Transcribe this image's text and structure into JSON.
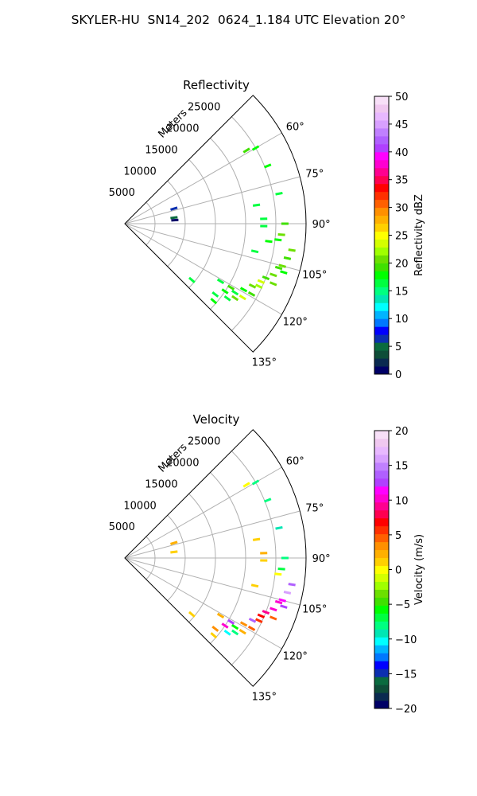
{
  "figure": {
    "title": "SKYLER-HU  SN14_202  0624_1.184 UTC Elevation 20°"
  },
  "chart_data": [
    {
      "type": "heatmap",
      "projection": "polar-sector",
      "title": "Reflectivity",
      "radial_axis_label": "Meters",
      "radial_ticks": [
        5000,
        10000,
        15000,
        20000,
        25000
      ],
      "radial_tick_labels": [
        "5000",
        "10000",
        "15000",
        "20000",
        "25000"
      ],
      "radial_range": [
        0,
        30000
      ],
      "azimuth_range_deg": [
        45,
        135
      ],
      "azimuth_ticks_deg": [
        60,
        75,
        90,
        105,
        120,
        135
      ],
      "azimuth_tick_labels": [
        "60°",
        "75°",
        "90°",
        "105°",
        "120°",
        "135°"
      ],
      "grid": true,
      "colorbar": {
        "label": "Reflectivity dBZ",
        "range": [
          0,
          50
        ],
        "ticks": [
          0,
          5,
          10,
          15,
          20,
          25,
          30,
          35,
          40,
          45,
          50
        ],
        "tick_labels": [
          "0",
          "5",
          "10",
          "15",
          "20",
          "25",
          "30",
          "35",
          "40",
          "45",
          "50"
        ],
        "colors": [
          "#000066",
          "#0a2a50",
          "#0e4d38",
          "#0a6b3f",
          "#0b2fb0",
          "#0000ff",
          "#0078ff",
          "#00b4ff",
          "#00ffff",
          "#00e6b4",
          "#00ff80",
          "#00ff40",
          "#00ff00",
          "#40e000",
          "#6ce000",
          "#a0ff00",
          "#d4ff00",
          "#ffff00",
          "#ffd000",
          "#ffb000",
          "#ff9000",
          "#ff6000",
          "#ff3000",
          "#ff0000",
          "#ff0050",
          "#ff0090",
          "#ff00d0",
          "#ff00ff",
          "#b040ff",
          "#b060ff",
          "#c080ff",
          "#d8a0ff",
          "#e8b8ff",
          "#f0c8f0",
          "#f8e0f8"
        ]
      },
      "cells": [
        {
          "r": 25000,
          "az": 60,
          "v": 18
        },
        {
          "r": 23500,
          "az": 59,
          "v": 19
        },
        {
          "r": 25500,
          "az": 68,
          "v": 18
        },
        {
          "r": 26000,
          "az": 79,
          "v": 17
        },
        {
          "r": 22000,
          "az": 82,
          "v": 16
        },
        {
          "r": 23000,
          "az": 88,
          "v": 17
        },
        {
          "r": 23000,
          "az": 91,
          "v": 16
        },
        {
          "r": 26500,
          "az": 90,
          "v": 19
        },
        {
          "r": 26000,
          "az": 94,
          "v": 20
        },
        {
          "r": 25500,
          "az": 96,
          "v": 18
        },
        {
          "r": 24000,
          "az": 97,
          "v": 18
        },
        {
          "r": 22000,
          "az": 102,
          "v": 16
        },
        {
          "r": 28000,
          "az": 99,
          "v": 20
        },
        {
          "r": 27500,
          "az": 102,
          "v": 19
        },
        {
          "r": 27000,
          "az": 105,
          "v": 21
        },
        {
          "r": 26500,
          "az": 106,
          "v": 19
        },
        {
          "r": 27500,
          "az": 107,
          "v": 18
        },
        {
          "r": 26000,
          "az": 109,
          "v": 20
        },
        {
          "r": 25000,
          "az": 111,
          "v": 19
        },
        {
          "r": 26500,
          "az": 112,
          "v": 20
        },
        {
          "r": 24500,
          "az": 115,
          "v": 22
        },
        {
          "r": 23500,
          "az": 116,
          "v": 20
        },
        {
          "r": 24000,
          "az": 119,
          "v": 19
        },
        {
          "r": 22500,
          "az": 119,
          "v": 18
        },
        {
          "r": 21500,
          "az": 122,
          "v": 17
        },
        {
          "r": 23000,
          "az": 122,
          "v": 23
        },
        {
          "r": 22000,
          "az": 124,
          "v": 20
        },
        {
          "r": 20500,
          "az": 121,
          "v": 19
        },
        {
          "r": 20000,
          "az": 124,
          "v": 18
        },
        {
          "r": 21000,
          "az": 126,
          "v": 17
        },
        {
          "r": 19000,
          "az": 128,
          "v": 16
        },
        {
          "r": 19500,
          "az": 131,
          "v": 18
        },
        {
          "r": 14500,
          "az": 130,
          "v": 17
        },
        {
          "r": 18500,
          "az": 121,
          "v": 16
        },
        {
          "r": 24500,
          "az": 113,
          "v": 24
        },
        {
          "r": 8500,
          "az": 73,
          "v": 6
        },
        {
          "r": 8200,
          "az": 83,
          "v": 5
        },
        {
          "r": 8300,
          "az": 86,
          "v": 0
        }
      ]
    },
    {
      "type": "heatmap",
      "projection": "polar-sector",
      "title": "Velocity",
      "radial_axis_label": "Meters",
      "radial_ticks": [
        5000,
        10000,
        15000,
        20000,
        25000
      ],
      "radial_tick_labels": [
        "5000",
        "10000",
        "15000",
        "20000",
        "25000"
      ],
      "radial_range": [
        0,
        30000
      ],
      "azimuth_range_deg": [
        45,
        135
      ],
      "azimuth_ticks_deg": [
        60,
        75,
        90,
        105,
        120,
        135
      ],
      "azimuth_tick_labels": [
        "60°",
        "75°",
        "90°",
        "105°",
        "120°",
        "135°"
      ],
      "grid": true,
      "colorbar": {
        "label": "Velocity (m/s)",
        "range": [
          -20,
          20
        ],
        "ticks": [
          -20,
          -15,
          -10,
          -5,
          0,
          5,
          10,
          15,
          20
        ],
        "tick_labels": [
          "−20",
          "−15",
          "−10",
          "−5",
          "0",
          "5",
          "10",
          "15",
          "20"
        ],
        "colors": [
          "#000066",
          "#0a2a50",
          "#0e4d38",
          "#0a6b3f",
          "#0b2fb0",
          "#0000ff",
          "#0078ff",
          "#00b4ff",
          "#00ffff",
          "#00e6b4",
          "#00ff80",
          "#00ff40",
          "#00ff00",
          "#40e000",
          "#6ce000",
          "#a0ff00",
          "#d4ff00",
          "#ffff00",
          "#ffd000",
          "#ffb000",
          "#ff9000",
          "#ff6000",
          "#ff3000",
          "#ff0000",
          "#ff0050",
          "#ff0090",
          "#ff00d0",
          "#ff00ff",
          "#b040ff",
          "#b060ff",
          "#c080ff",
          "#d8a0ff",
          "#e8b8ff",
          "#f0c8f0",
          "#f8e0f8"
        ]
      },
      "cells": [
        {
          "r": 25000,
          "az": 60,
          "v": -8
        },
        {
          "r": 23500,
          "az": 59,
          "v": 0
        },
        {
          "r": 25500,
          "az": 68,
          "v": -8
        },
        {
          "r": 26000,
          "az": 79,
          "v": -9
        },
        {
          "r": 22000,
          "az": 82,
          "v": 1
        },
        {
          "r": 23000,
          "az": 88,
          "v": 2
        },
        {
          "r": 23000,
          "az": 91,
          "v": 1
        },
        {
          "r": 26500,
          "az": 90,
          "v": -8
        },
        {
          "r": 26000,
          "az": 94,
          "v": -7
        },
        {
          "r": 25500,
          "az": 96,
          "v": 0
        },
        {
          "r": 22000,
          "az": 102,
          "v": 1
        },
        {
          "r": 28000,
          "az": 99,
          "v": 14
        },
        {
          "r": 27500,
          "az": 102,
          "v": 16
        },
        {
          "r": 27000,
          "az": 105,
          "v": 11
        },
        {
          "r": 26500,
          "az": 106,
          "v": 10
        },
        {
          "r": 27500,
          "az": 107,
          "v": 13
        },
        {
          "r": 26000,
          "az": 109,
          "v": 10
        },
        {
          "r": 25000,
          "az": 111,
          "v": 9
        },
        {
          "r": 26500,
          "az": 112,
          "v": 5
        },
        {
          "r": 24500,
          "az": 115,
          "v": 6
        },
        {
          "r": 23500,
          "az": 116,
          "v": 14
        },
        {
          "r": 24000,
          "az": 119,
          "v": 4
        },
        {
          "r": 22500,
          "az": 119,
          "v": 3
        },
        {
          "r": 21500,
          "az": 122,
          "v": -6
        },
        {
          "r": 23000,
          "az": 122,
          "v": 2
        },
        {
          "r": 22000,
          "az": 124,
          "v": -8
        },
        {
          "r": 20500,
          "az": 121,
          "v": 13
        },
        {
          "r": 20000,
          "az": 124,
          "v": 10
        },
        {
          "r": 21000,
          "az": 126,
          "v": -10
        },
        {
          "r": 19000,
          "az": 128,
          "v": 3
        },
        {
          "r": 19500,
          "az": 131,
          "v": 1
        },
        {
          "r": 14500,
          "az": 130,
          "v": 1
        },
        {
          "r": 18500,
          "az": 121,
          "v": 2
        },
        {
          "r": 24500,
          "az": 113,
          "v": 7
        },
        {
          "r": 8500,
          "az": 73,
          "v": 2
        },
        {
          "r": 8200,
          "az": 83,
          "v": 1
        }
      ]
    }
  ]
}
